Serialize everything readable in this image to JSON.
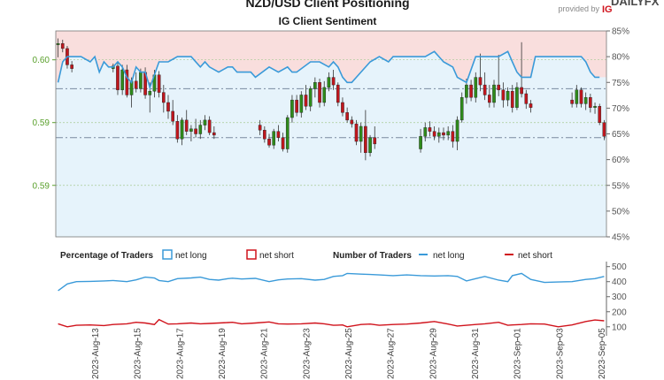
{
  "header": {
    "title": "NZD/USD Client Positioning",
    "subtitle": "IG Client Sentiment",
    "brand_text": "DAILYFX",
    "provided_by": "provided by",
    "provider": "IG"
  },
  "legend": {
    "percentage_label": "Percentage of Traders",
    "number_label": "Number of Traders",
    "net_long": "net long",
    "net_short": "net short"
  },
  "colors": {
    "long": "#3a9ad9",
    "short": "#d0121b",
    "up_candle": "#2e8b1a",
    "down_candle": "#c0161d",
    "long_fill": "#e6f3fb",
    "short_fill": "#f9dedd",
    "axis_price": "#5aa02c",
    "axis_gray": "#666666"
  },
  "chart_data": [
    {
      "type": "candlestick+line",
      "title": "IG Client Sentiment",
      "left_axis": {
        "tick_labels": [
          "0.60",
          "0.59",
          "0.59"
        ],
        "tick_values": [
          0.6,
          0.595,
          0.59
        ],
        "range": [
          0.5859,
          0.6023
        ]
      },
      "right_axis": {
        "unit": "%",
        "tick_labels": [
          "85%",
          "80%",
          "75%",
          "70%",
          "65%",
          "60%",
          "55%",
          "50%",
          "45%"
        ],
        "range": [
          45,
          85
        ]
      },
      "reference_lines": [
        0.5977,
        0.5938
      ],
      "x_labels": [
        "2023-Aug-13",
        "2023-Aug-15",
        "2023-Aug-17",
        "2023-Aug-19",
        "2023-Aug-21",
        "2023-Aug-23",
        "2023-Aug-25",
        "2023-Aug-27",
        "2023-Aug-29",
        "2023-Aug-31",
        "2023-Sep-01",
        "2023-Sep-03",
        "2023-Sep-05"
      ],
      "net_long_pct": [
        [
          0,
          75
        ],
        [
          1,
          79
        ],
        [
          2,
          80
        ],
        [
          5,
          80
        ],
        [
          7,
          79
        ],
        [
          8,
          80
        ],
        [
          9,
          77
        ],
        [
          10,
          79
        ],
        [
          11,
          78
        ],
        [
          12,
          78
        ],
        [
          13,
          79
        ],
        [
          14,
          78
        ],
        [
          15,
          76
        ],
        [
          16,
          75
        ],
        [
          17,
          78
        ],
        [
          18,
          77
        ],
        [
          19,
          77
        ],
        [
          20,
          74
        ],
        [
          22,
          79
        ],
        [
          24,
          79
        ],
        [
          26,
          80
        ],
        [
          29,
          80
        ],
        [
          31,
          78
        ],
        [
          32,
          79
        ],
        [
          33,
          78
        ],
        [
          35,
          77
        ],
        [
          37,
          78
        ],
        [
          38,
          78
        ],
        [
          39,
          77
        ],
        [
          42,
          77
        ],
        [
          43,
          76
        ],
        [
          46,
          78
        ],
        [
          48,
          77
        ],
        [
          50,
          78
        ],
        [
          51,
          77
        ],
        [
          52,
          77
        ],
        [
          55,
          79
        ],
        [
          57,
          79
        ],
        [
          59,
          78
        ],
        [
          60,
          79
        ],
        [
          61,
          78
        ],
        [
          62,
          76
        ],
        [
          63,
          75
        ],
        [
          64,
          75
        ],
        [
          66,
          77
        ],
        [
          68,
          79
        ],
        [
          70,
          80
        ],
        [
          72,
          79
        ],
        [
          73,
          80
        ],
        [
          75,
          80
        ],
        [
          77,
          80
        ],
        [
          80,
          80
        ],
        [
          82,
          81
        ],
        [
          83,
          80
        ],
        [
          84,
          79
        ],
        [
          86,
          78
        ],
        [
          87,
          76
        ],
        [
          89,
          75
        ],
        [
          91,
          80
        ],
        [
          93,
          80
        ],
        [
          96,
          80
        ],
        [
          98,
          81
        ],
        [
          99,
          79
        ],
        [
          100,
          77
        ],
        [
          101,
          76
        ],
        [
          103,
          76
        ],
        [
          104,
          80
        ],
        [
          106,
          80
        ],
        [
          110,
          80
        ],
        [
          114,
          80
        ],
        [
          115,
          79
        ],
        [
          116,
          77
        ],
        [
          117,
          76
        ],
        [
          118,
          76
        ]
      ],
      "candles": [
        [
          0,
          0.6012,
          0.6017,
          0.6002,
          0.6013
        ],
        [
          1,
          0.6013,
          0.6016,
          0.6006,
          0.6009
        ],
        [
          2,
          0.6009,
          0.6011,
          0.5993,
          0.5996
        ],
        [
          3,
          0.5996,
          0.5999,
          0.599,
          0.5993
        ],
        [
          12,
          0.5993,
          0.5997,
          0.599,
          0.5995
        ],
        [
          13,
          0.5995,
          0.5998,
          0.5972,
          0.5976
        ],
        [
          14,
          0.5976,
          0.5996,
          0.5972,
          0.5992
        ],
        [
          15,
          0.5992,
          0.5996,
          0.597,
          0.5972
        ],
        [
          16,
          0.5972,
          0.5986,
          0.5962,
          0.5983
        ],
        [
          17,
          0.5983,
          0.599,
          0.5974,
          0.5977
        ],
        [
          18,
          0.5977,
          0.5993,
          0.5974,
          0.599
        ],
        [
          19,
          0.599,
          0.5994,
          0.5969,
          0.5972
        ],
        [
          20,
          0.5972,
          0.5982,
          0.5958,
          0.5975
        ],
        [
          21,
          0.5975,
          0.5992,
          0.597,
          0.5988
        ],
        [
          22,
          0.5988,
          0.5991,
          0.597,
          0.5974
        ],
        [
          23,
          0.5974,
          0.598,
          0.5958,
          0.5966
        ],
        [
          24,
          0.5966,
          0.5972,
          0.5953,
          0.5959
        ],
        [
          25,
          0.5959,
          0.5968,
          0.5948,
          0.5951
        ],
        [
          26,
          0.5951,
          0.5956,
          0.5934,
          0.5937
        ],
        [
          27,
          0.5937,
          0.5954,
          0.5932,
          0.5952
        ],
        [
          28,
          0.5952,
          0.596,
          0.594,
          0.5943
        ],
        [
          29,
          0.5943,
          0.5948,
          0.5935,
          0.5945
        ],
        [
          30,
          0.5945,
          0.5953,
          0.5938,
          0.5941
        ],
        [
          31,
          0.5941,
          0.5952,
          0.5937,
          0.5948
        ],
        [
          32,
          0.5948,
          0.5956,
          0.5944,
          0.5952
        ],
        [
          33,
          0.5952,
          0.5955,
          0.594,
          0.5942
        ],
        [
          34,
          0.5942,
          0.5947,
          0.5937,
          0.594
        ],
        [
          44,
          0.5948,
          0.5952,
          0.594,
          0.5944
        ],
        [
          45,
          0.5944,
          0.5947,
          0.5934,
          0.5937
        ],
        [
          46,
          0.5937,
          0.5941,
          0.593,
          0.5932
        ],
        [
          47,
          0.5932,
          0.5945,
          0.5929,
          0.5943
        ],
        [
          48,
          0.5943,
          0.5948,
          0.5935,
          0.5938
        ],
        [
          49,
          0.5938,
          0.5942,
          0.5927,
          0.5929
        ],
        [
          50,
          0.5929,
          0.5956,
          0.5926,
          0.5954
        ],
        [
          51,
          0.5954,
          0.5972,
          0.595,
          0.5968
        ],
        [
          52,
          0.5968,
          0.5972,
          0.5955,
          0.5958
        ],
        [
          53,
          0.5958,
          0.5975,
          0.5954,
          0.5972
        ],
        [
          54,
          0.5972,
          0.598,
          0.596,
          0.5963
        ],
        [
          55,
          0.5963,
          0.5979,
          0.5959,
          0.5977
        ],
        [
          56,
          0.5977,
          0.5986,
          0.597,
          0.5982
        ],
        [
          57,
          0.5982,
          0.5985,
          0.5962,
          0.5966
        ],
        [
          58,
          0.5966,
          0.5983,
          0.5963,
          0.5978
        ],
        [
          59,
          0.5978,
          0.599,
          0.5975,
          0.5986
        ],
        [
          60,
          0.5986,
          0.5992,
          0.5976,
          0.598
        ],
        [
          61,
          0.598,
          0.5982,
          0.5963,
          0.5966
        ],
        [
          62,
          0.5966,
          0.597,
          0.5955,
          0.5958
        ],
        [
          63,
          0.5958,
          0.5962,
          0.595,
          0.5952
        ],
        [
          64,
          0.5952,
          0.5955,
          0.5946,
          0.5949
        ],
        [
          65,
          0.5949,
          0.5952,
          0.5932,
          0.5935
        ],
        [
          66,
          0.5935,
          0.595,
          0.5926,
          0.5947
        ],
        [
          67,
          0.5947,
          0.596,
          0.592,
          0.5926
        ],
        [
          68,
          0.5926,
          0.594,
          0.5923,
          0.5938
        ],
        [
          69,
          0.5938,
          0.5947,
          0.5929,
          0.5933
        ],
        [
          79,
          0.5929,
          0.5945,
          0.5926,
          0.5939
        ],
        [
          80,
          0.5939,
          0.595,
          0.5935,
          0.5946
        ],
        [
          81,
          0.5946,
          0.5951,
          0.5939,
          0.5943
        ],
        [
          82,
          0.5943,
          0.5947,
          0.5936,
          0.5939
        ],
        [
          83,
          0.5939,
          0.5946,
          0.5934,
          0.5942
        ],
        [
          84,
          0.5942,
          0.5946,
          0.5936,
          0.594
        ],
        [
          85,
          0.594,
          0.5947,
          0.5936,
          0.5943
        ],
        [
          86,
          0.5943,
          0.5948,
          0.593,
          0.5935
        ],
        [
          87,
          0.5935,
          0.5955,
          0.5928,
          0.5952
        ],
        [
          88,
          0.5952,
          0.5974,
          0.595,
          0.597
        ],
        [
          89,
          0.597,
          0.5985,
          0.5965,
          0.598
        ],
        [
          90,
          0.598,
          0.5984,
          0.5967,
          0.597
        ],
        [
          91,
          0.597,
          0.599,
          0.5966,
          0.5986
        ],
        [
          92,
          0.5986,
          0.6005,
          0.5975,
          0.598
        ],
        [
          93,
          0.598,
          0.599,
          0.5968,
          0.5972
        ],
        [
          94,
          0.5972,
          0.598,
          0.5962,
          0.5966
        ],
        [
          95,
          0.5966,
          0.5984,
          0.5962,
          0.598
        ],
        [
          96,
          0.598,
          0.6004,
          0.5971,
          0.5976
        ],
        [
          97,
          0.5976,
          0.5982,
          0.5962,
          0.5968
        ],
        [
          98,
          0.5968,
          0.5978,
          0.5963,
          0.5975
        ],
        [
          99,
          0.5975,
          0.598,
          0.5958,
          0.5962
        ],
        [
          100,
          0.5962,
          0.5982,
          0.596,
          0.5978
        ],
        [
          101,
          0.5978,
          0.6014,
          0.597,
          0.5973
        ],
        [
          102,
          0.5973,
          0.5976,
          0.5961,
          0.5965
        ],
        [
          103,
          0.5965,
          0.5968,
          0.5958,
          0.5962
        ],
        [
          112,
          0.5968,
          0.5974,
          0.5962,
          0.5965
        ],
        [
          113,
          0.5965,
          0.598,
          0.5962,
          0.5976
        ],
        [
          114,
          0.5976,
          0.5978,
          0.5962,
          0.5965
        ],
        [
          115,
          0.5965,
          0.5974,
          0.596,
          0.597
        ],
        [
          116,
          0.597,
          0.5973,
          0.5958,
          0.5962
        ],
        [
          117,
          0.5962,
          0.5966,
          0.5957,
          0.5963
        ],
        [
          118,
          0.5963,
          0.5965,
          0.5948,
          0.595
        ],
        [
          119,
          0.595,
          0.5952,
          0.5936,
          0.5939
        ]
      ],
      "last_close": 0.5939,
      "slots": 120
    },
    {
      "type": "line",
      "title": "Number of Traders",
      "y_tick_labels": [
        "500",
        "400",
        "300",
        "200",
        "100"
      ],
      "y_tick_values": [
        500,
        400,
        300,
        200,
        100
      ],
      "ylim": [
        40,
        510
      ],
      "series": [
        {
          "name": "net long",
          "x": [
            0,
            2,
            4,
            7,
            10,
            12,
            15,
            17,
            19,
            21,
            22,
            24,
            26,
            29,
            31,
            33,
            35,
            37,
            38,
            40,
            43,
            46,
            48,
            50,
            53,
            56,
            58,
            60,
            62,
            63,
            66,
            68,
            70,
            73,
            76,
            79,
            82,
            85,
            87,
            89,
            91,
            93,
            96,
            98,
            99,
            101,
            103,
            106,
            109,
            112,
            115,
            117,
            119
          ],
          "values": [
            340,
            385,
            400,
            402,
            405,
            408,
            400,
            412,
            430,
            425,
            408,
            400,
            420,
            425,
            430,
            415,
            410,
            420,
            423,
            418,
            422,
            400,
            412,
            418,
            420,
            410,
            415,
            435,
            440,
            455,
            450,
            448,
            445,
            440,
            445,
            440,
            438,
            440,
            435,
            405,
            420,
            435,
            410,
            400,
            440,
            455,
            415,
            395,
            398,
            400,
            415,
            420,
            435
          ]
        },
        {
          "name": "net short",
          "x": [
            0,
            2,
            4,
            7,
            10,
            12,
            15,
            17,
            19,
            21,
            22,
            24,
            26,
            29,
            31,
            33,
            35,
            37,
            38,
            40,
            43,
            46,
            48,
            50,
            53,
            56,
            58,
            60,
            62,
            63,
            66,
            68,
            70,
            73,
            76,
            79,
            82,
            85,
            87,
            89,
            91,
            93,
            96,
            98,
            99,
            101,
            103,
            106,
            109,
            112,
            115,
            117,
            119
          ],
          "values": [
            120,
            100,
            110,
            112,
            108,
            115,
            120,
            130,
            125,
            115,
            148,
            118,
            120,
            125,
            120,
            122,
            125,
            128,
            130,
            120,
            125,
            132,
            120,
            118,
            120,
            125,
            120,
            110,
            112,
            100,
            115,
            118,
            110,
            115,
            118,
            125,
            135,
            118,
            105,
            110,
            115,
            120,
            130,
            110,
            112,
            115,
            120,
            118,
            100,
            112,
            135,
            145,
            140
          ]
        }
      ]
    }
  ]
}
